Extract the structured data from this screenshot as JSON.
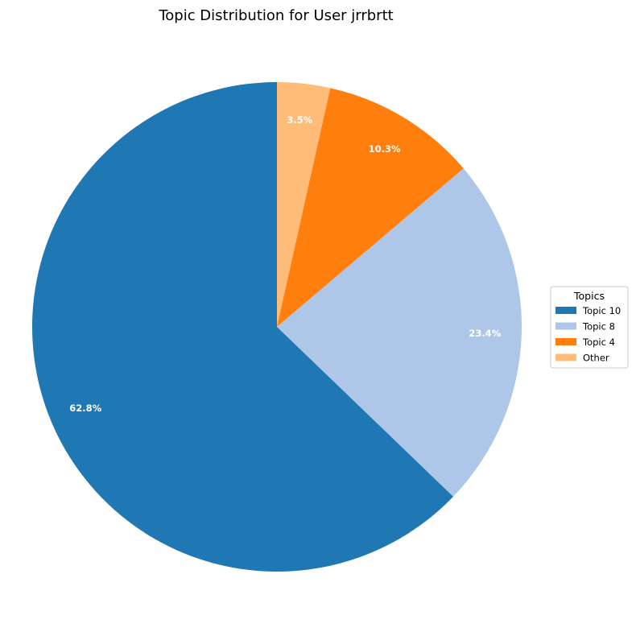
{
  "chart_data": {
    "type": "pie",
    "title": "Topic Distribution for User jrrbrtt",
    "start_angle_deg": 90,
    "direction": "clockwise",
    "slices": [
      {
        "label": "Other",
        "value": 3.5,
        "pct_label": "3.5%",
        "color": "#ffbb78"
      },
      {
        "label": "Topic 4",
        "value": 10.3,
        "pct_label": "10.3%",
        "color": "#ff7f0e"
      },
      {
        "label": "Topic 8",
        "value": 23.4,
        "pct_label": "23.4%",
        "color": "#aec7e8"
      },
      {
        "label": "Topic 10",
        "value": 62.8,
        "pct_label": "62.8%",
        "color": "#1f77b4"
      }
    ],
    "legend": {
      "title": "Topics",
      "placement": "right",
      "entries": [
        {
          "label": "Topic 10",
          "color": "#1f77b4"
        },
        {
          "label": "Topic 8",
          "color": "#aec7e8"
        },
        {
          "label": "Topic 4",
          "color": "#ff7f0e"
        },
        {
          "label": "Other",
          "color": "#ffbb78"
        }
      ]
    }
  }
}
